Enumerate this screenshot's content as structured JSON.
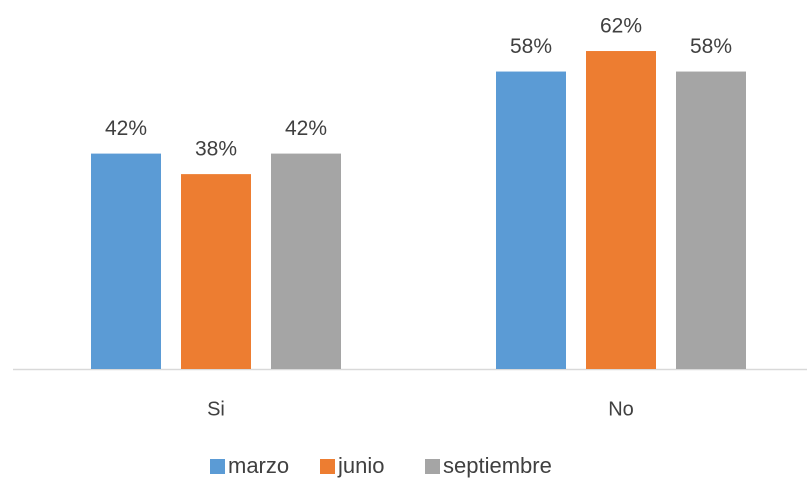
{
  "chart_data": {
    "type": "bar",
    "categories": [
      "Si",
      "No"
    ],
    "series": [
      {
        "name": "marzo",
        "color": "#5b9bd5",
        "values": [
          42,
          58
        ],
        "value_labels": [
          "42%",
          "58%"
        ]
      },
      {
        "name": "junio",
        "color": "#ed7d31",
        "values": [
          38,
          62
        ],
        "value_labels": [
          "38%",
          "62%"
        ]
      },
      {
        "name": "septiembre",
        "color": "#a5a5a5",
        "values": [
          42,
          58
        ],
        "value_labels": [
          "42%",
          "58%"
        ]
      }
    ],
    "ylim": [
      0,
      70
    ],
    "legend": "bottom"
  }
}
